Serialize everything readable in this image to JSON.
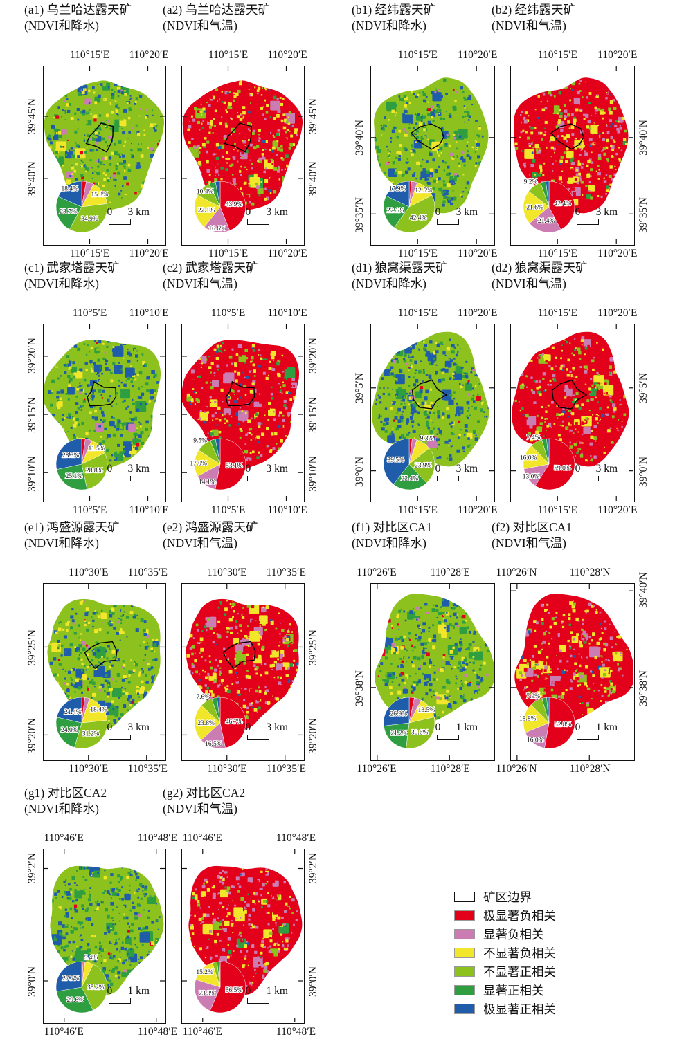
{
  "figure": {
    "description_visible_text_only": true
  },
  "colors": {
    "red": "#E2001A",
    "magenta": "#CB7CB3",
    "yellow": "#F2E62B",
    "lightgreen": "#8DC21E",
    "darkgreen": "#2E9E40",
    "blue": "#1F5CA9",
    "boundary": "#000000",
    "frame": "#111111"
  },
  "legend": {
    "items": [
      {
        "name": "mine-boundary",
        "label": "矿区边界",
        "color": "#FFFFFF",
        "outline": true
      },
      {
        "name": "extremely-significant-negative",
        "label": "极显著负相关",
        "color": "#E2001A"
      },
      {
        "name": "significant-negative",
        "label": "显著负相关",
        "color": "#CB7CB3"
      },
      {
        "name": "not-significant-negative",
        "label": "不显著负相关",
        "color": "#F2E62B"
      },
      {
        "name": "not-significant-positive",
        "label": "不显著正相关",
        "color": "#8DC21E"
      },
      {
        "name": "significant-positive",
        "label": "显著正相关",
        "color": "#2E9E40"
      },
      {
        "name": "extremely-significant-positive",
        "label": "极显著正相关",
        "color": "#1F5CA9"
      }
    ],
    "classes": [
      "极显著负相关",
      "显著负相关",
      "不显著负相关",
      "不显著正相关",
      "显著正相关",
      "极显著正相关"
    ]
  },
  "panels": [
    {
      "id": "a1",
      "mine": "a",
      "kind": "precip",
      "title1": "(a1) 乌兰哈达露天矿",
      "title2": "(NDVI和降水)",
      "lon": {
        "labels": [
          "110°15′E",
          "110°20′E"
        ],
        "fracs": [
          0.38,
          0.86
        ]
      },
      "lat": {
        "side": "left",
        "labels": [
          "39°45′N",
          "39°40′N"
        ],
        "fracs": [
          0.28,
          0.63
        ]
      },
      "scale": {
        "zero": "0",
        "dist": "3 km"
      },
      "boundary": true,
      "pie": {
        "values": [
          2.9,
          4.8,
          15.3,
          34.9,
          23.7,
          18.4
        ],
        "labels": [
          "",
          "",
          "15.3%",
          "34.9%",
          "23.7%",
          "18.4%"
        ]
      }
    },
    {
      "id": "a2",
      "mine": "a",
      "kind": "temp",
      "title1": "(a2) 乌兰哈达露天矿",
      "title2": "(NDVI和气温)",
      "lon": {
        "labels": [
          "110°15′E",
          "110°20′E"
        ],
        "fracs": [
          0.38,
          0.86
        ]
      },
      "lat": {
        "side": "right",
        "labels": [
          "39°45′N",
          "39°40′N"
        ],
        "fracs": [
          0.28,
          0.63
        ]
      },
      "scale": {
        "zero": "0",
        "dist": "3 km"
      },
      "boundary": true,
      "pie": {
        "values": [
          43.9,
          16.6,
          22.1,
          10.4,
          4.0,
          3.0
        ],
        "labels": [
          "43.9%",
          "16.6%",
          "22.1%",
          "10.4%",
          "",
          ""
        ]
      }
    },
    {
      "id": "b1",
      "mine": "b",
      "kind": "precip",
      "title1": "(b1) 经纬露天矿",
      "title2": "(NDVI和降水)",
      "lon": {
        "labels": [
          "110°15′E",
          "110°20′E"
        ],
        "fracs": [
          0.38,
          0.86
        ]
      },
      "lat": {
        "side": "left",
        "labels": [
          "39°40′N",
          "39°35′N"
        ],
        "fracs": [
          0.4,
          0.83
        ]
      },
      "scale": {
        "zero": "0",
        "dist": "3 km"
      },
      "boundary": true,
      "pie": {
        "values": [
          1.5,
          3.6,
          12.5,
          42.4,
          22.1,
          17.9
        ],
        "labels": [
          "",
          "",
          "12.5%",
          "42.4%",
          "22.1%",
          "17.9%"
        ]
      }
    },
    {
      "id": "b2",
      "mine": "b",
      "kind": "temp",
      "title1": "(b2) 经纬露天矿",
      "title2": "(NDVI和气温)",
      "lon": {
        "labels": [
          "110°15′E",
          "110°20′E"
        ],
        "fracs": [
          0.38,
          0.86
        ]
      },
      "lat": {
        "side": "right",
        "labels": [
          "39°40′N",
          "39°35′N"
        ],
        "fracs": [
          0.4,
          0.83
        ]
      },
      "scale": {
        "zero": "0",
        "dist": "3 km"
      },
      "boundary": true,
      "pie": {
        "values": [
          42.4,
          21.4,
          21.6,
          9.2,
          3.4,
          2.0
        ],
        "labels": [
          "42.4%",
          "21.4%",
          "21.6%",
          "9.2%",
          "",
          ""
        ]
      }
    },
    {
      "id": "c1",
      "mine": "c",
      "kind": "precip",
      "title1": "(c1) 武家塔露天矿",
      "title2": "(NDVI和降水)",
      "lon": {
        "labels": [
          "110°5′E",
          "110°10′E"
        ],
        "fracs": [
          0.38,
          0.86
        ]
      },
      "lat": {
        "side": "left",
        "labels": [
          "39°20′N",
          "39°15′N",
          "39°10′N"
        ],
        "fracs": [
          0.18,
          0.51,
          0.84
        ]
      },
      "scale": {
        "zero": "0",
        "dist": "3 km"
      },
      "boundary": true,
      "pie": {
        "values": [
          2.3,
          4.0,
          11.5,
          28.8,
          25.1,
          28.3
        ],
        "labels": [
          "",
          "",
          "11.5%",
          "28.8%",
          "25.1%",
          "28.3%"
        ]
      }
    },
    {
      "id": "c2",
      "mine": "c",
      "kind": "temp",
      "title1": "(c2) 武家塔露天矿",
      "title2": "(NDVI和气温)",
      "lon": {
        "labels": [
          "110°5′E",
          "110°10′E"
        ],
        "fracs": [
          0.38,
          0.86
        ]
      },
      "lat": {
        "side": "right",
        "labels": [
          "39°20′N",
          "39°15′N",
          "39°10′N"
        ],
        "fracs": [
          0.18,
          0.51,
          0.84
        ]
      },
      "scale": {
        "zero": "0",
        "dist": "3 km"
      },
      "boundary": true,
      "pie": {
        "values": [
          53.1,
          14.1,
          17.0,
          9.5,
          3.3,
          3.0
        ],
        "labels": [
          "53.1%",
          "14.1%",
          "17.0%",
          "9.5%",
          "",
          ""
        ]
      }
    },
    {
      "id": "d1",
      "mine": "d",
      "kind": "precip",
      "title1": "(d1) 狼窝渠露天矿",
      "title2": "(NDVI和降水)",
      "lon": {
        "labels": [
          "110°15′E",
          "110°20′E"
        ],
        "fracs": [
          0.38,
          0.86
        ]
      },
      "lat": {
        "side": "left",
        "labels": [
          "39°5′N",
          "39°0′N"
        ],
        "fracs": [
          0.36,
          0.83
        ]
      },
      "scale": {
        "zero": "0",
        "dist": "3 km"
      },
      "boundary": true,
      "pie": {
        "values": [
          1.9,
          3.0,
          9.3,
          23.9,
          22.4,
          39.5
        ],
        "labels": [
          "",
          "",
          "9.3%",
          "23.9%",
          "22.4%",
          "39.5%"
        ]
      }
    },
    {
      "id": "d2",
      "mine": "d",
      "kind": "temp",
      "title1": "(d2) 狼窝渠露天矿",
      "title2": "(NDVI和气温)",
      "lon": {
        "labels": [
          "110°15′E",
          "110°20′E"
        ],
        "fracs": [
          0.38,
          0.86
        ]
      },
      "lat": {
        "side": "right",
        "labels": [
          "39°5′N",
          "39°0′N"
        ],
        "fracs": [
          0.36,
          0.83
        ]
      },
      "scale": {
        "zero": "0",
        "dist": "3 km"
      },
      "boundary": true,
      "pie": {
        "values": [
          59.0,
          13.0,
          16.0,
          7.4,
          3.1,
          1.5
        ],
        "labels": [
          "59.0%",
          "13.0%",
          "16.0%",
          "7.4%",
          "",
          ""
        ]
      }
    },
    {
      "id": "e1",
      "mine": "e",
      "kind": "precip",
      "title1": "(e1) 鸿盛源露天矿",
      "title2": "(NDVI和降水)",
      "lon": {
        "labels": [
          "110°30′E",
          "110°35′E"
        ],
        "fracs": [
          0.37,
          0.85
        ]
      },
      "lat": {
        "side": "left",
        "labels": [
          "39°25′N",
          "39°20′N"
        ],
        "fracs": [
          0.36,
          0.86
        ]
      },
      "scale": {
        "zero": "0",
        "dist": "3 km"
      },
      "boundary": true,
      "pie": {
        "values": [
          2.0,
          3.0,
          18.4,
          31.2,
          24.0,
          21.4
        ],
        "labels": [
          "",
          "",
          "18.4%",
          "31.2%",
          "24.0%",
          "21.4%"
        ]
      }
    },
    {
      "id": "e2",
      "mine": "e",
      "kind": "temp",
      "title1": "(e2) 鸿盛源露天矿",
      "title2": "(NDVI和气温)",
      "lon": {
        "labels": [
          "110°30′E",
          "110°35′E"
        ],
        "fracs": [
          0.37,
          0.85
        ]
      },
      "lat": {
        "side": "right",
        "labels": [
          "39°25′N",
          "39°20′N"
        ],
        "fracs": [
          0.36,
          0.86
        ]
      },
      "scale": {
        "zero": "0",
        "dist": "3 km"
      },
      "boundary": true,
      "pie": {
        "values": [
          46.7,
          16.5,
          23.8,
          7.6,
          3.4,
          2.0
        ],
        "labels": [
          "46.7%",
          "16.5%",
          "23.8%",
          "7.6%",
          "",
          ""
        ]
      }
    },
    {
      "id": "f1",
      "mine": "f",
      "kind": "precip",
      "title1": "(f1) 对比区CA1",
      "title2": "(NDVI和降水)",
      "lon": {
        "labels": [
          "110°26′E",
          "110°28′E"
        ],
        "fracs": [
          0.05,
          0.64
        ]
      },
      "lat": {
        "side": "left",
        "labels": [
          "39°38′N"
        ],
        "fracs": [
          0.59
        ]
      },
      "scale": {
        "zero": "0",
        "dist": "1 km"
      },
      "boundary": false,
      "pie": {
        "values": [
          3.3,
          4.5,
          13.5,
          30.6,
          21.2,
          26.9
        ],
        "labels": [
          "",
          "",
          "13.5%",
          "30.6%",
          "21.2%",
          "26.9%"
        ]
      }
    },
    {
      "id": "f2",
      "mine": "f",
      "kind": "temp",
      "title1": "(f2) 对比区CA1",
      "title2": "(NDVI和气温)",
      "lon": {
        "labels": [
          "110°26′N",
          "110°28′N"
        ],
        "fracs": [
          0.05,
          0.64
        ]
      },
      "lat": {
        "side": "right",
        "labels": [
          "39°40′N",
          "39°38′N"
        ],
        "fracs": [
          0.04,
          0.59
        ]
      },
      "scale": {
        "zero": "0",
        "dist": "1 km"
      },
      "boundary": false,
      "pie": {
        "values": [
          52.8,
          16.0,
          18.8,
          7.9,
          3.0,
          1.5
        ],
        "labels": [
          "52.8%",
          "16.0%",
          "18.8%",
          "7.9%",
          "",
          ""
        ]
      }
    },
    {
      "id": "g1",
      "mine": "g",
      "kind": "precip",
      "title1": "(g1) 对比区CA2",
      "title2": "(NDVI和降水)",
      "lon": {
        "labels": [
          "110°46′E",
          "110°48′E"
        ],
        "fracs": [
          0.17,
          0.93
        ]
      },
      "lat": {
        "side": "left",
        "labels": [
          "39°2′N",
          "39°0′N"
        ],
        "fracs": [
          0.11,
          0.76
        ]
      },
      "scale": {
        "zero": "0",
        "dist": "1 km"
      },
      "boundary": false,
      "pie": {
        "values": [
          0.8,
          1.3,
          5.4,
          35.2,
          29.6,
          27.7
        ],
        "labels": [
          "",
          "",
          "5.4%",
          "35.2%",
          "29.6%",
          "27.7%"
        ]
      }
    },
    {
      "id": "g2",
      "mine": "g",
      "kind": "temp",
      "title1": "(g2) 对比区CA2",
      "title2": "(NDVI和气温)",
      "lon": {
        "labels": [
          "110°46′E",
          "110°48′E"
        ],
        "fracs": [
          0.17,
          0.93
        ]
      },
      "lat": {
        "side": "right",
        "labels": [
          "39°2′N",
          "39°0′N"
        ],
        "fracs": [
          0.11,
          0.76
        ]
      },
      "scale": {
        "zero": "0",
        "dist": "1 km"
      },
      "boundary": false,
      "pie": {
        "values": [
          56.5,
          23.3,
          15.2,
          3.0,
          1.5,
          0.5
        ],
        "labels": [
          "56.5%",
          "23.3%",
          "15.2%",
          "",
          "",
          ""
        ]
      }
    }
  ],
  "chart_data": [
    {
      "type": "pie",
      "panel": "a1",
      "title": "乌兰哈达露天矿 (NDVI和降水)",
      "categories": [
        "极显著负相关",
        "显著负相关",
        "不显著负相关",
        "不显著正相关",
        "显著正相关",
        "极显著正相关"
      ],
      "values": [
        2.9,
        4.8,
        15.3,
        34.9,
        23.7,
        18.4
      ],
      "shown_labels": [
        "",
        "",
        "15.3%",
        "34.9%",
        "23.7%",
        "18.4%"
      ]
    },
    {
      "type": "pie",
      "panel": "a2",
      "title": "乌兰哈达露天矿 (NDVI和气温)",
      "categories": [
        "极显著负相关",
        "显著负相关",
        "不显著负相关",
        "不显著正相关",
        "显著正相关",
        "极显著正相关"
      ],
      "values": [
        43.9,
        16.6,
        22.1,
        10.4,
        4.0,
        3.0
      ],
      "shown_labels": [
        "43.9%",
        "16.6%",
        "22.1%",
        "10.4%",
        "",
        ""
      ]
    },
    {
      "type": "pie",
      "panel": "b1",
      "title": "经纬露天矿 (NDVI和降水)",
      "categories": [
        "极显著负相关",
        "显著负相关",
        "不显著负相关",
        "不显著正相关",
        "显著正相关",
        "极显著正相关"
      ],
      "values": [
        1.5,
        3.6,
        12.5,
        42.4,
        22.1,
        17.9
      ],
      "shown_labels": [
        "",
        "",
        "12.5%",
        "42.4%",
        "22.1%",
        "17.9%"
      ]
    },
    {
      "type": "pie",
      "panel": "b2",
      "title": "经纬露天矿 (NDVI和气温)",
      "categories": [
        "极显著负相关",
        "显著负相关",
        "不显著负相关",
        "不显著正相关",
        "显著正相关",
        "极显著正相关"
      ],
      "values": [
        42.4,
        21.4,
        21.6,
        9.2,
        3.4,
        2.0
      ],
      "shown_labels": [
        "42.4%",
        "21.4%",
        "21.6%",
        "9.2%",
        "",
        ""
      ]
    },
    {
      "type": "pie",
      "panel": "c1",
      "title": "武家塔露天矿 (NDVI和降水)",
      "categories": [
        "极显著负相关",
        "显著负相关",
        "不显著负相关",
        "不显著正相关",
        "显著正相关",
        "极显著正相关"
      ],
      "values": [
        2.3,
        4.0,
        11.5,
        28.8,
        25.1,
        28.3
      ],
      "shown_labels": [
        "",
        "",
        "11.5%",
        "28.8%",
        "25.1%",
        "28.3%"
      ]
    },
    {
      "type": "pie",
      "panel": "c2",
      "title": "武家塔露天矿 (NDVI和气温)",
      "categories": [
        "极显著负相关",
        "显著负相关",
        "不显著负相关",
        "不显著正相关",
        "显著正相关",
        "极显著正相关"
      ],
      "values": [
        53.1,
        14.1,
        17.0,
        9.5,
        3.3,
        3.0
      ],
      "shown_labels": [
        "53.1%",
        "14.1%",
        "17.0%",
        "9.5%",
        "",
        ""
      ]
    },
    {
      "type": "pie",
      "panel": "d1",
      "title": "狼窝渠露天矿 (NDVI和降水)",
      "categories": [
        "极显著负相关",
        "显著负相关",
        "不显著负相关",
        "不显著正相关",
        "显著正相关",
        "极显著正相关"
      ],
      "values": [
        1.9,
        3.0,
        9.3,
        23.9,
        22.4,
        39.5
      ],
      "shown_labels": [
        "",
        "",
        "9.3%",
        "23.9%",
        "22.4%",
        "39.5%"
      ]
    },
    {
      "type": "pie",
      "panel": "d2",
      "title": "狼窝渠露天矿 (NDVI和气温)",
      "categories": [
        "极显著负相关",
        "显著负相关",
        "不显著负相关",
        "不显著正相关",
        "显著正相关",
        "极显著正相关"
      ],
      "values": [
        59.0,
        13.0,
        16.0,
        7.4,
        3.1,
        1.5
      ],
      "shown_labels": [
        "59.0%",
        "13.0%",
        "16.0%",
        "7.4%",
        "",
        ""
      ]
    },
    {
      "type": "pie",
      "panel": "e1",
      "title": "鸿盛源露天矿 (NDVI和降水)",
      "categories": [
        "极显著负相关",
        "显著负相关",
        "不显著负相关",
        "不显著正相关",
        "显著正相关",
        "极显著正相关"
      ],
      "values": [
        2.0,
        3.0,
        18.4,
        31.2,
        24.0,
        21.4
      ],
      "shown_labels": [
        "",
        "",
        "18.4%",
        "31.2%",
        "24.0%",
        "21.4%"
      ]
    },
    {
      "type": "pie",
      "panel": "e2",
      "title": "鸿盛源露天矿 (NDVI和气温)",
      "categories": [
        "极显著负相关",
        "显著负相关",
        "不显著负相关",
        "不显著正相关",
        "显著正相关",
        "极显著正相关"
      ],
      "values": [
        46.7,
        16.5,
        23.8,
        7.6,
        3.4,
        2.0
      ],
      "shown_labels": [
        "46.7%",
        "16.5%",
        "23.8%",
        "7.6%",
        "",
        ""
      ]
    },
    {
      "type": "pie",
      "panel": "f1",
      "title": "对比区CA1 (NDVI和降水)",
      "categories": [
        "极显著负相关",
        "显著负相关",
        "不显著负相关",
        "不显著正相关",
        "显著正相关",
        "极显著正相关"
      ],
      "values": [
        3.3,
        4.5,
        13.5,
        30.6,
        21.2,
        26.9
      ],
      "shown_labels": [
        "",
        "",
        "13.5%",
        "30.6%",
        "21.2%",
        "26.9%"
      ]
    },
    {
      "type": "pie",
      "panel": "f2",
      "title": "对比区CA1 (NDVI和气温)",
      "categories": [
        "极显著负相关",
        "显著负相关",
        "不显著负相关",
        "不显著正相关",
        "显著正相关",
        "极显著正相关"
      ],
      "values": [
        52.8,
        16.0,
        18.8,
        7.9,
        3.0,
        1.5
      ],
      "shown_labels": [
        "52.8%",
        "16.0%",
        "18.8%",
        "7.9%",
        "",
        ""
      ]
    },
    {
      "type": "pie",
      "panel": "g1",
      "title": "对比区CA2 (NDVI和降水)",
      "categories": [
        "极显著负相关",
        "显著负相关",
        "不显著负相关",
        "不显著正相关",
        "显著正相关",
        "极显著正相关"
      ],
      "values": [
        0.8,
        1.3,
        5.4,
        35.2,
        29.6,
        27.7
      ],
      "shown_labels": [
        "",
        "",
        "5.4%",
        "35.2%",
        "29.6%",
        "27.7%"
      ]
    },
    {
      "type": "pie",
      "panel": "g2",
      "title": "对比区CA2 (NDVI和气温)",
      "categories": [
        "极显著负相关",
        "显著负相关",
        "不显著负相关",
        "不显著正相关",
        "显著正相关",
        "极显著正相关"
      ],
      "values": [
        56.5,
        23.3,
        15.2,
        3.0,
        1.5,
        0.5
      ],
      "shown_labels": [
        "56.5%",
        "23.3%",
        "15.2%",
        "",
        "",
        ""
      ]
    }
  ]
}
